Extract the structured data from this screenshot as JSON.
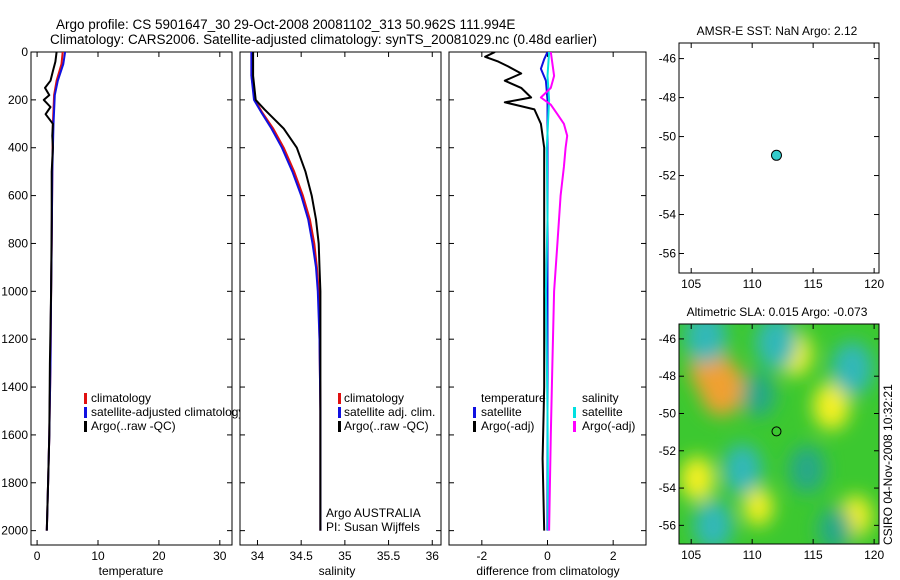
{
  "header": {
    "line1": "Argo profile: CS 5901647_30 29-Oct-2008 20081102_313 50.962S 111.994E",
    "line2": "Climatology: CARS2006. Satellite-adjusted climatology: synTS_20081029.nc (0.48d earlier)"
  },
  "colors": {
    "climatology": "#e01010",
    "satellite": "#1010e0",
    "argo": "#000000",
    "sat_salinity": "#00e0e0",
    "argo_salinity": "#ff00ff",
    "marker": "#33cccc"
  },
  "chart_data": [
    {
      "id": "temperature",
      "type": "line",
      "xlabel": "temperature",
      "xlim": [
        -1,
        32
      ],
      "ylim": [
        0,
        2060
      ],
      "y_inverted": true,
      "xticks": [
        0,
        10,
        20,
        30
      ],
      "xtick_labels": [
        "0",
        "10",
        "20",
        "30"
      ],
      "yticks": [
        0,
        200,
        400,
        600,
        800,
        1000,
        1200,
        1400,
        1600,
        1800,
        2000
      ],
      "ytick_labels": [
        "0",
        "200",
        "400",
        "600",
        "800",
        "1000",
        "1200",
        "1400",
        "1600",
        "1800",
        "2000"
      ],
      "legend": [
        "climatology",
        "satellite-adjusted climatology",
        "Argo(..raw -QC)"
      ],
      "series": [
        {
          "name": "climatology",
          "color": "#e01010",
          "points": [
            [
              4.2,
              0
            ],
            [
              4.0,
              50
            ],
            [
              3.2,
              120
            ],
            [
              2.8,
              180
            ],
            [
              2.6,
              300
            ],
            [
              2.5,
              500
            ],
            [
              2.4,
              800
            ],
            [
              2.3,
              1000
            ],
            [
              2.2,
              1300
            ],
            [
              2.0,
              1600
            ],
            [
              1.8,
              1800
            ],
            [
              1.6,
              2000
            ]
          ]
        },
        {
          "name": "satellite-adjusted climatology",
          "color": "#1010e0",
          "points": [
            [
              4.6,
              0
            ],
            [
              4.3,
              50
            ],
            [
              3.4,
              120
            ],
            [
              2.9,
              180
            ],
            [
              2.7,
              300
            ],
            [
              2.5,
              500
            ],
            [
              2.4,
              800
            ],
            [
              2.3,
              1000
            ],
            [
              2.2,
              1300
            ],
            [
              2.0,
              1600
            ],
            [
              1.8,
              1800
            ],
            [
              1.6,
              2000
            ]
          ]
        },
        {
          "name": "Argo(..raw -QC)",
          "color": "#000000",
          "points": [
            [
              3.2,
              0
            ],
            [
              3.0,
              40
            ],
            [
              2.6,
              80
            ],
            [
              2.2,
              120
            ],
            [
              1.3,
              150
            ],
            [
              2.0,
              180
            ],
            [
              1.1,
              200
            ],
            [
              2.2,
              230
            ],
            [
              1.4,
              260
            ],
            [
              2.6,
              300
            ],
            [
              2.5,
              350
            ],
            [
              2.6,
              400
            ],
            [
              2.4,
              500
            ],
            [
              2.4,
              700
            ],
            [
              2.3,
              1000
            ],
            [
              2.1,
              1300
            ],
            [
              2.0,
              1600
            ],
            [
              1.8,
              1800
            ],
            [
              1.6,
              2000
            ]
          ]
        }
      ]
    },
    {
      "id": "salinity",
      "type": "line",
      "xlabel": "salinity",
      "xlim": [
        33.8,
        36.1
      ],
      "ylim": [
        0,
        2060
      ],
      "y_inverted": true,
      "xticks": [
        34,
        34.5,
        35,
        35.5,
        36
      ],
      "xtick_labels": [
        "34",
        "34.5",
        "35",
        "35.5",
        "36"
      ],
      "legend": [
        "climatology",
        "satellite adj. clim.",
        "Argo(..raw -QC)"
      ],
      "annotation": [
        "Argo AUSTRALIA",
        "PI: Susan Wijffels"
      ],
      "series": [
        {
          "name": "climatology",
          "color": "#e01010",
          "points": [
            [
              33.93,
              0
            ],
            [
              33.93,
              100
            ],
            [
              33.97,
              200
            ],
            [
              34.05,
              250
            ],
            [
              34.18,
              320
            ],
            [
              34.3,
              400
            ],
            [
              34.42,
              500
            ],
            [
              34.52,
              600
            ],
            [
              34.6,
              700
            ],
            [
              34.65,
              800
            ],
            [
              34.68,
              900
            ],
            [
              34.7,
              1000
            ],
            [
              34.71,
              1200
            ],
            [
              34.72,
              1500
            ],
            [
              34.72,
              2000
            ]
          ]
        },
        {
          "name": "satellite adj. clim.",
          "color": "#1010e0",
          "points": [
            [
              33.93,
              0
            ],
            [
              33.93,
              100
            ],
            [
              33.96,
              200
            ],
            [
              34.04,
              250
            ],
            [
              34.16,
              320
            ],
            [
              34.28,
              400
            ],
            [
              34.4,
              500
            ],
            [
              34.5,
              600
            ],
            [
              34.58,
              700
            ],
            [
              34.63,
              800
            ],
            [
              34.67,
              900
            ],
            [
              34.69,
              1000
            ],
            [
              34.71,
              1200
            ],
            [
              34.72,
              1500
            ],
            [
              34.72,
              2000
            ]
          ]
        },
        {
          "name": "Argo(..raw -QC)",
          "color": "#000000",
          "points": [
            [
              33.95,
              0
            ],
            [
              33.95,
              100
            ],
            [
              33.98,
              200
            ],
            [
              34.08,
              240
            ],
            [
              34.3,
              320
            ],
            [
              34.45,
              400
            ],
            [
              34.55,
              500
            ],
            [
              34.62,
              600
            ],
            [
              34.67,
              700
            ],
            [
              34.7,
              800
            ],
            [
              34.71,
              900
            ],
            [
              34.72,
              1000
            ],
            [
              34.72,
              1500
            ],
            [
              34.72,
              2000
            ]
          ]
        }
      ]
    },
    {
      "id": "difference",
      "type": "line",
      "xlabel": "difference from climatology",
      "xlim": [
        -3,
        3
      ],
      "ylim": [
        0,
        2060
      ],
      "y_inverted": true,
      "xticks": [
        -2,
        0,
        2
      ],
      "xtick_labels": [
        "-2",
        "0",
        "2"
      ],
      "legend_left_title": "temperature",
      "legend_left": [
        "satellite",
        "Argo(-adj)"
      ],
      "legend_right_title": "salinity",
      "legend_right": [
        "satellite",
        "Argo(-adj)"
      ],
      "series": [
        {
          "name": "temperature satellite",
          "color": "#1010e0",
          "points": [
            [
              0.0,
              0
            ],
            [
              -0.1,
              30
            ],
            [
              -0.2,
              70
            ],
            [
              -0.05,
              120
            ],
            [
              0,
              200
            ],
            [
              0,
              400
            ],
            [
              0,
              1000
            ],
            [
              0,
              2000
            ]
          ]
        },
        {
          "name": "temperature Argo(-adj)",
          "color": "#000000",
          "points": [
            [
              -1.6,
              0
            ],
            [
              -1.9,
              20
            ],
            [
              -1.5,
              40
            ],
            [
              -1.2,
              60
            ],
            [
              -0.8,
              90
            ],
            [
              -1.3,
              120
            ],
            [
              -0.8,
              150
            ],
            [
              -0.5,
              190
            ],
            [
              -1.3,
              210
            ],
            [
              -0.4,
              240
            ],
            [
              -0.2,
              300
            ],
            [
              -0.1,
              400
            ],
            [
              -0.1,
              700
            ],
            [
              -0.1,
              1000
            ],
            [
              -0.1,
              1400
            ],
            [
              -0.15,
              1700
            ],
            [
              -0.1,
              2000
            ]
          ]
        },
        {
          "name": "salinity satellite",
          "color": "#00e0e0",
          "points": [
            [
              0.05,
              0
            ],
            [
              0.0,
              100
            ],
            [
              0.05,
              200
            ],
            [
              -0.02,
              400
            ],
            [
              0.0,
              700
            ],
            [
              -0.05,
              1000
            ],
            [
              0.0,
              1500
            ],
            [
              0.02,
              2000
            ]
          ]
        },
        {
          "name": "salinity Argo(-adj)",
          "color": "#ff00ff",
          "points": [
            [
              0.1,
              0
            ],
            [
              0.2,
              100
            ],
            [
              0.1,
              150
            ],
            [
              -0.2,
              190
            ],
            [
              0.1,
              220
            ],
            [
              0.3,
              260
            ],
            [
              0.5,
              300
            ],
            [
              0.6,
              350
            ],
            [
              0.55,
              400
            ],
            [
              0.5,
              480
            ],
            [
              0.4,
              600
            ],
            [
              0.3,
              800
            ],
            [
              0.2,
              1000
            ],
            [
              0.15,
              1300
            ],
            [
              0.1,
              1600
            ],
            [
              0.05,
              2000
            ]
          ]
        }
      ]
    },
    {
      "id": "sst_map",
      "type": "scatter",
      "title": "AMSR-E SST: NaN Argo: 2.12",
      "xlim": [
        104,
        120.4
      ],
      "ylim": [
        -57,
        -45.2
      ],
      "xticks": [
        105,
        110,
        115,
        120
      ],
      "xtick_labels": [
        "105",
        "110",
        "115",
        "120"
      ],
      "yticks": [
        -46,
        -48,
        -50,
        -52,
        -54,
        -56
      ],
      "ytick_labels": [
        "-46",
        "-48",
        "-50",
        "-52",
        "-54",
        "-56"
      ],
      "points": [
        {
          "x": 111.994,
          "y": -50.962
        }
      ]
    },
    {
      "id": "sla_map",
      "type": "heatmap",
      "title": "Altimetric SLA: 0.015 Argo: -0.073",
      "xlim": [
        104,
        120.4
      ],
      "ylim": [
        -57,
        -45.2
      ],
      "xticks": [
        105,
        110,
        115,
        120
      ],
      "xtick_labels": [
        "105",
        "110",
        "115",
        "120"
      ],
      "yticks": [
        -46,
        -48,
        -50,
        -52,
        -54,
        -56
      ],
      "ytick_labels": [
        "-46",
        "-48",
        "-50",
        "-52",
        "-54",
        "-56"
      ],
      "points": [
        {
          "x": 111.994,
          "y": -50.962
        }
      ],
      "anomalies": [
        {
          "x": 106.5,
          "y": -47.6,
          "v": 0.8
        },
        {
          "x": 107.5,
          "y": -48.6,
          "v": 1.0
        },
        {
          "x": 113.5,
          "y": -46.8,
          "v": 0.6
        },
        {
          "x": 116.5,
          "y": -49.6,
          "v": 0.7
        },
        {
          "x": 105.5,
          "y": -53.5,
          "v": 0.6
        },
        {
          "x": 110.5,
          "y": -55.0,
          "v": 0.4
        },
        {
          "x": 118.5,
          "y": -55.5,
          "v": 0.5
        },
        {
          "x": 106.2,
          "y": -45.9,
          "v": -0.9
        },
        {
          "x": 112.0,
          "y": -46.2,
          "v": -0.9
        },
        {
          "x": 118.2,
          "y": -47.6,
          "v": -0.9
        },
        {
          "x": 110.5,
          "y": -49.0,
          "v": -0.6
        },
        {
          "x": 109.2,
          "y": -53.0,
          "v": -0.8
        },
        {
          "x": 114.5,
          "y": -53.0,
          "v": -0.7
        },
        {
          "x": 106.8,
          "y": -56.0,
          "v": -0.8
        },
        {
          "x": 116.8,
          "y": -56.2,
          "v": -0.6
        }
      ]
    }
  ],
  "footer": {
    "credit": "CSIRO 04-Nov-2008 10:32:21"
  }
}
